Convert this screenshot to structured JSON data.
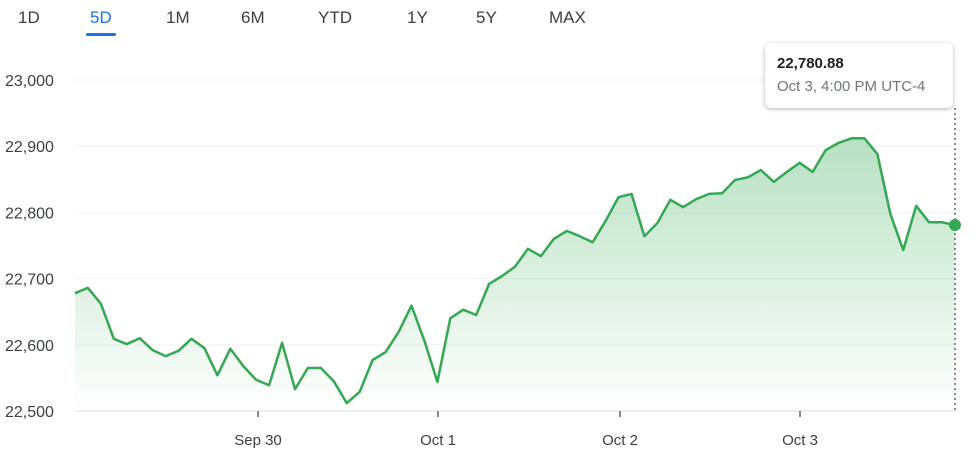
{
  "tabs": [
    {
      "label": "1D",
      "active": false
    },
    {
      "label": "5D",
      "active": true
    },
    {
      "label": "1M",
      "active": false
    },
    {
      "label": "6M",
      "active": false
    },
    {
      "label": "YTD",
      "active": false
    },
    {
      "label": "1Y",
      "active": false
    },
    {
      "label": "5Y",
      "active": false
    },
    {
      "label": "MAX",
      "active": false
    }
  ],
  "tooltip": {
    "value": "22,780.88",
    "time": "Oct 3, 4:00 PM UTC-4"
  },
  "colors": {
    "line": "#34a853",
    "accent": "#1a73e8",
    "grid": "#f1f3f4"
  },
  "chart_data": {
    "type": "area",
    "title": "",
    "xlabel": "",
    "ylabel": "",
    "ylim": [
      22500,
      23000
    ],
    "yticks": [
      22500,
      22600,
      22700,
      22800,
      22900,
      23000
    ],
    "ytick_labels": [
      "22,500",
      "22,600",
      "22,700",
      "22,800",
      "22,900",
      "23,000"
    ],
    "xtick_labels": [
      "Sep 30",
      "Oct 1",
      "Oct 2",
      "Oct 3"
    ],
    "grid": true,
    "last_value": 22780.88,
    "series": [
      {
        "values": [
          22678,
          22686,
          22662,
          22609,
          22601,
          22610,
          22592,
          22583,
          22591,
          22609,
          22595,
          22554,
          22594,
          22568,
          22547,
          22539,
          22603,
          22533,
          22565,
          22565,
          22545,
          22512,
          22529,
          22577,
          22589,
          22619,
          22659,
          22606,
          22544,
          22640,
          22653,
          22645,
          22692,
          22704,
          22718,
          22745,
          22734,
          22760,
          22772,
          22764,
          22755,
          22787,
          22823,
          22828,
          22764,
          22784,
          22819,
          22808,
          22820,
          22828,
          22829,
          22849,
          22853,
          22864,
          22846,
          22861,
          22875,
          22861,
          22894,
          22905,
          22912,
          22912,
          22888,
          22798,
          22743,
          22810,
          22785,
          22785,
          22780.88
        ]
      }
    ]
  }
}
